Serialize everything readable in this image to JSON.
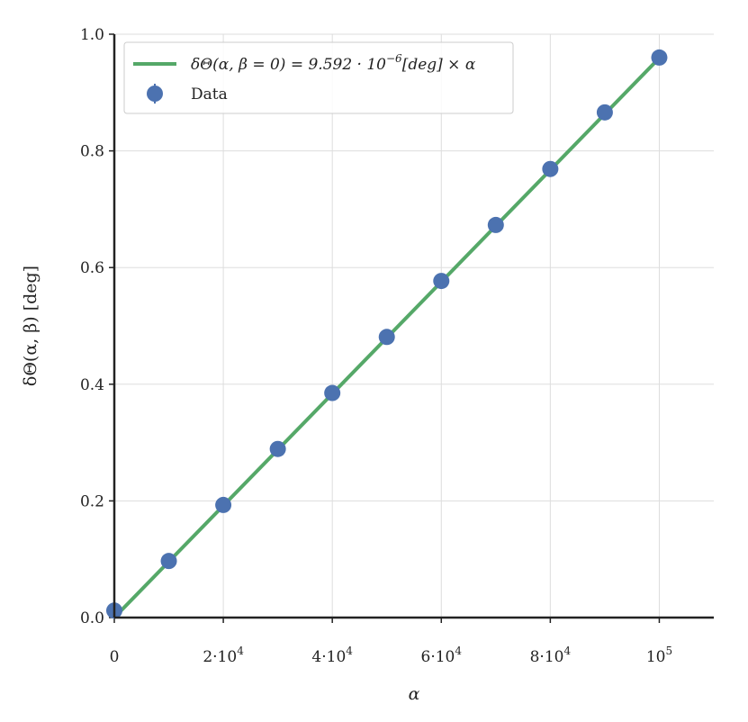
{
  "chart_data": {
    "type": "scatter",
    "xlabel": "α",
    "ylabel": "δΘ(α, β) [deg]",
    "xlim": [
      0,
      110000
    ],
    "ylim": [
      0,
      1.0
    ],
    "grid": true,
    "legend_position": "top-left",
    "x_ticks": [
      {
        "value": 0,
        "base": "0",
        "exp": ""
      },
      {
        "value": 20000,
        "base": "2·10",
        "exp": "4"
      },
      {
        "value": 40000,
        "base": "4·10",
        "exp": "4"
      },
      {
        "value": 60000,
        "base": "6·10",
        "exp": "4"
      },
      {
        "value": 80000,
        "base": "8·10",
        "exp": "4"
      },
      {
        "value": 100000,
        "base": "10",
        "exp": "5"
      }
    ],
    "y_ticks": [
      {
        "value": 0.0,
        "label": "0.0"
      },
      {
        "value": 0.2,
        "label": "0.2"
      },
      {
        "value": 0.4,
        "label": "0.4"
      },
      {
        "value": 0.6,
        "label": "0.6"
      },
      {
        "value": 0.8,
        "label": "0.8"
      },
      {
        "value": 1.0,
        "label": "1.0"
      }
    ],
    "series": [
      {
        "name": "δΘ(α, β = 0) = 9.592 · 10⁻⁶[deg] × α",
        "kind": "line",
        "color": "#55a868",
        "slope": 9.592e-06,
        "x": [
          0,
          100000
        ],
        "y": [
          0,
          0.9592
        ]
      },
      {
        "name": "Data",
        "kind": "scatter",
        "color": "#4c72b0",
        "x": [
          0,
          10000,
          20000,
          30000,
          40000,
          50000,
          60000,
          70000,
          80000,
          90000,
          100000
        ],
        "y": [
          0.012,
          0.097,
          0.193,
          0.289,
          0.385,
          0.481,
          0.577,
          0.673,
          0.769,
          0.866,
          0.96
        ]
      }
    ]
  },
  "legend": {
    "fit_label_prefix": "δΘ(α, β = 0) = 9.592 · 10",
    "fit_label_exp": "−6",
    "fit_label_suffix": "[deg] × α",
    "data_label": "Data"
  },
  "colors": {
    "axis": "#222222",
    "grid": "#dddddd",
    "fit_line": "#55a868",
    "data_points": "#4c72b0"
  }
}
